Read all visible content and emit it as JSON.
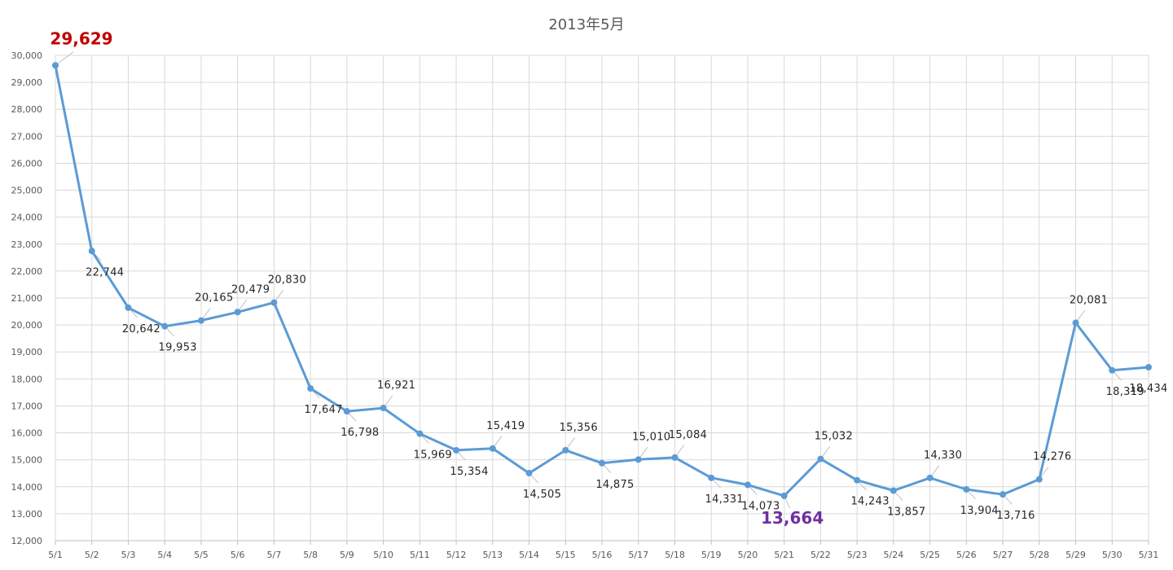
{
  "chart_data": {
    "type": "line",
    "title": "2013年5月",
    "xlabel": "",
    "ylabel": "",
    "ylim": [
      12000,
      30000
    ],
    "ytick_step": 1000,
    "grid": true,
    "legend": "none",
    "categories": [
      "5/1",
      "5/2",
      "5/3",
      "5/4",
      "5/5",
      "5/6",
      "5/7",
      "5/8",
      "5/9",
      "5/10",
      "5/11",
      "5/12",
      "5/13",
      "5/14",
      "5/15",
      "5/16",
      "5/17",
      "5/18",
      "5/19",
      "5/20",
      "5/21",
      "5/22",
      "5/23",
      "5/24",
      "5/25",
      "5/26",
      "5/27",
      "5/28",
      "5/29",
      "5/30",
      "5/31"
    ],
    "series": [
      {
        "values": [
          29629,
          22744,
          20642,
          19953,
          20165,
          20479,
          20830,
          17647,
          16798,
          16921,
          15969,
          15354,
          15419,
          14505,
          15356,
          14875,
          15010,
          15084,
          14331,
          14073,
          13664,
          15032,
          14243,
          13857,
          14330,
          13904,
          13716,
          14276,
          20081,
          18319,
          18434
        ],
        "labels": [
          "29,629",
          "22,744",
          "20,642",
          "19,953",
          "20,165",
          "20,479",
          "20,830",
          "17,647",
          "16,798",
          "16,921",
          "15,969",
          "15,354",
          "15,419",
          "14,505",
          "15,356",
          "14,875",
          "15,010",
          "15,084",
          "14,331",
          "14,073",
          "13,664",
          "15,032",
          "14,243",
          "13,857",
          "14,330",
          "13,904",
          "13,716",
          "14,276",
          "20,081",
          "18,319",
          "18,434"
        ],
        "color": "#5b9bd5"
      }
    ],
    "highlight": {
      "max_index": 0,
      "max_color": "#c00000",
      "min_index": 20,
      "min_color": "#7030a0"
    },
    "colors": {
      "grid": "#d9d9d9",
      "axis": "#bfbfbf",
      "text": "#595959",
      "label": "#262626"
    }
  }
}
